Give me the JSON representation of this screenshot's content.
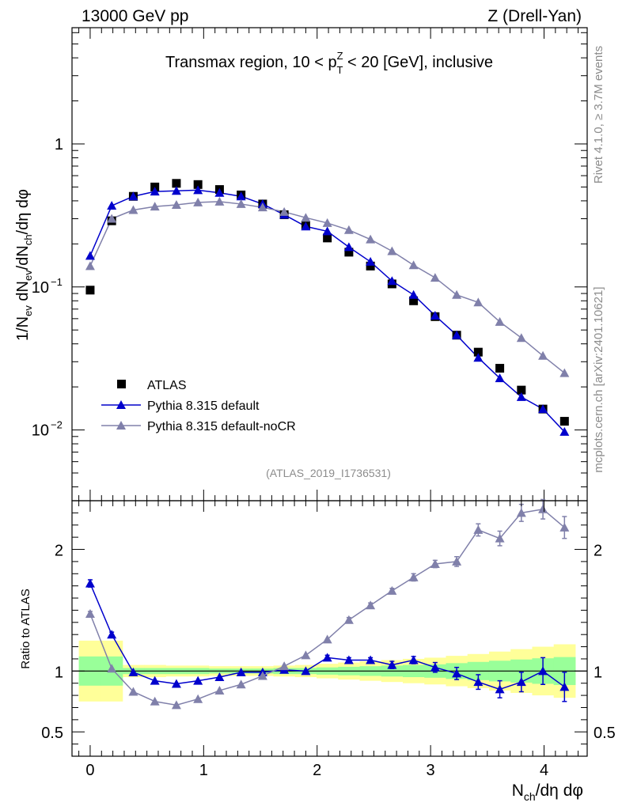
{
  "header": {
    "left": "13000 GeV pp",
    "right": "Z (Drell-Yan)"
  },
  "side_labels": {
    "rivet": "Rivet 4.1.0, ≥ 3.7M events",
    "mcplots": "mcplots.cern.ch [arXiv:2401.10621]"
  },
  "chart_data": [
    {
      "type": "line",
      "panel": "main",
      "title": "Transmax region, 10 < p_T^Z < 20 [GeV], inclusive",
      "ylabel": "1/N_ev dN_ev/dN_ch/dη dφ",
      "yscale": "log",
      "ylim": [
        0.0032,
        6.5
      ],
      "xlim": [
        -0.16,
        4.38
      ],
      "y_ticks": [
        {
          "v": 1,
          "label": "1"
        },
        {
          "v": 0.1,
          "label": "10",
          "exp": "−1"
        },
        {
          "v": 0.01,
          "label": "10",
          "exp": "−2"
        }
      ],
      "watermark": "(ATLAS_2019_I1736531)",
      "legend": {
        "position": "bottom-left",
        "entries": [
          "ATLAS",
          "Pythia 8.315 default",
          "Pythia 8.315 default-noCR"
        ]
      },
      "series": [
        {
          "name": "ATLAS",
          "marker": "square",
          "color": "#000000",
          "x": [
            0.0,
            0.19,
            0.38,
            0.57,
            0.76,
            0.95,
            1.14,
            1.33,
            1.52,
            1.71,
            1.9,
            2.09,
            2.28,
            2.47,
            2.66,
            2.85,
            3.04,
            3.23,
            3.42,
            3.61,
            3.8,
            3.99,
            4.18
          ],
          "y": [
            0.095,
            0.29,
            0.43,
            0.5,
            0.53,
            0.52,
            0.48,
            0.44,
            0.38,
            0.32,
            0.27,
            0.22,
            0.175,
            0.14,
            0.105,
            0.08,
            0.062,
            0.046,
            0.035,
            0.027,
            0.019,
            0.014,
            0.0115
          ]
        },
        {
          "name": "Pythia 8.315 default",
          "marker": "triangle",
          "color": "#0000cc",
          "x": [
            0.0,
            0.19,
            0.38,
            0.57,
            0.76,
            0.95,
            1.14,
            1.33,
            1.52,
            1.71,
            1.9,
            2.09,
            2.28,
            2.47,
            2.66,
            2.85,
            3.04,
            3.23,
            3.42,
            3.61,
            3.8,
            3.99,
            4.18
          ],
          "y": [
            0.165,
            0.37,
            0.43,
            0.465,
            0.47,
            0.475,
            0.455,
            0.43,
            0.38,
            0.32,
            0.265,
            0.245,
            0.19,
            0.15,
            0.11,
            0.088,
            0.063,
            0.046,
            0.032,
            0.023,
            0.017,
            0.014,
            0.0097
          ]
        },
        {
          "name": "Pythia 8.315 default-noCR",
          "marker": "triangle",
          "color": "#8080aa",
          "x": [
            0.0,
            0.19,
            0.38,
            0.57,
            0.76,
            0.95,
            1.14,
            1.33,
            1.52,
            1.71,
            1.9,
            2.09,
            2.28,
            2.47,
            2.66,
            2.85,
            3.04,
            3.23,
            3.42,
            3.61,
            3.8,
            3.99,
            4.18
          ],
          "y": [
            0.14,
            0.3,
            0.345,
            0.365,
            0.375,
            0.39,
            0.395,
            0.38,
            0.36,
            0.335,
            0.305,
            0.28,
            0.25,
            0.215,
            0.178,
            0.142,
            0.116,
            0.088,
            0.078,
            0.057,
            0.044,
            0.033,
            0.025
          ]
        }
      ]
    },
    {
      "type": "line",
      "panel": "ratio",
      "xlabel": "N_ch/dη dφ",
      "ylabel": "Ratio to ATLAS",
      "ylim": [
        0.3,
        2.4
      ],
      "xlim": [
        -0.16,
        4.38
      ],
      "y_ticks": [
        0.5,
        1,
        2
      ],
      "x_ticks": [
        0,
        1,
        2,
        3,
        4
      ],
      "reference": 1.0,
      "bands": {
        "x_edges": [
          -0.1,
          0.095,
          0.285,
          0.475,
          0.665,
          0.855,
          1.045,
          1.235,
          1.425,
          1.615,
          1.805,
          1.995,
          2.185,
          2.375,
          2.565,
          2.755,
          2.945,
          3.135,
          3.325,
          3.515,
          3.705,
          3.895,
          4.085,
          4.275
        ],
        "yellow": [
          [
            0.75,
            1.25
          ],
          [
            0.75,
            1.25
          ],
          [
            0.95,
            1.05
          ],
          [
            0.95,
            1.05
          ],
          [
            0.955,
            1.045
          ],
          [
            0.955,
            1.045
          ],
          [
            0.96,
            1.04
          ],
          [
            0.96,
            1.04
          ],
          [
            0.96,
            1.04
          ],
          [
            0.955,
            1.045
          ],
          [
            0.95,
            1.05
          ],
          [
            0.94,
            1.06
          ],
          [
            0.93,
            1.07
          ],
          [
            0.92,
            1.08
          ],
          [
            0.91,
            1.09
          ],
          [
            0.9,
            1.1
          ],
          [
            0.89,
            1.11
          ],
          [
            0.875,
            1.125
          ],
          [
            0.86,
            1.14
          ],
          [
            0.84,
            1.16
          ],
          [
            0.82,
            1.18
          ],
          [
            0.8,
            1.2
          ],
          [
            0.78,
            1.22
          ]
        ],
        "green": [
          [
            0.88,
            1.12
          ],
          [
            0.88,
            1.12
          ],
          [
            0.975,
            1.025
          ],
          [
            0.975,
            1.025
          ],
          [
            0.975,
            1.025
          ],
          [
            0.975,
            1.025
          ],
          [
            0.98,
            1.02
          ],
          [
            0.98,
            1.02
          ],
          [
            0.98,
            1.02
          ],
          [
            0.975,
            1.025
          ],
          [
            0.975,
            1.025
          ],
          [
            0.97,
            1.03
          ],
          [
            0.965,
            1.035
          ],
          [
            0.96,
            1.04
          ],
          [
            0.955,
            1.045
          ],
          [
            0.95,
            1.05
          ],
          [
            0.945,
            1.055
          ],
          [
            0.935,
            1.065
          ],
          [
            0.925,
            1.075
          ],
          [
            0.915,
            1.085
          ],
          [
            0.905,
            1.095
          ],
          [
            0.895,
            1.105
          ],
          [
            0.885,
            1.115
          ]
        ]
      },
      "series": [
        {
          "name": "Pythia 8.315 default",
          "color": "#0000cc",
          "x": [
            0.0,
            0.19,
            0.38,
            0.57,
            0.76,
            0.95,
            1.14,
            1.33,
            1.52,
            1.71,
            1.9,
            2.09,
            2.28,
            2.47,
            2.66,
            2.85,
            3.04,
            3.23,
            3.42,
            3.61,
            3.8,
            3.99,
            4.18
          ],
          "y": [
            1.72,
            1.3,
            0.99,
            0.92,
            0.895,
            0.92,
            0.95,
            0.99,
            0.99,
            1.01,
            1.0,
            1.11,
            1.09,
            1.09,
            1.05,
            1.09,
            1.03,
            0.98,
            0.91,
            0.85,
            0.91,
            1.0,
            0.87
          ],
          "err": [
            0.03,
            0.02,
            0.01,
            0.01,
            0.01,
            0.01,
            0.01,
            0.01,
            0.01,
            0.01,
            0.01,
            0.02,
            0.02,
            0.02,
            0.03,
            0.03,
            0.04,
            0.05,
            0.06,
            0.07,
            0.08,
            0.11,
            0.12
          ]
        },
        {
          "name": "Pythia 8.315 default-noCR",
          "color": "#8080aa",
          "x": [
            0.0,
            0.19,
            0.38,
            0.57,
            0.76,
            0.95,
            1.14,
            1.33,
            1.52,
            1.71,
            1.9,
            2.09,
            2.28,
            2.47,
            2.66,
            2.85,
            3.04,
            3.23,
            3.42,
            3.61,
            3.8,
            3.99,
            4.18
          ],
          "y": [
            1.47,
            1.02,
            0.83,
            0.75,
            0.72,
            0.77,
            0.84,
            0.89,
            0.96,
            1.04,
            1.13,
            1.26,
            1.42,
            1.54,
            1.66,
            1.77,
            1.88,
            1.9,
            2.16,
            2.09,
            2.3,
            2.33,
            2.18
          ],
          "err": [
            0.02,
            0.01,
            0.01,
            0.01,
            0.01,
            0.01,
            0.01,
            0.01,
            0.01,
            0.01,
            0.01,
            0.01,
            0.02,
            0.02,
            0.02,
            0.03,
            0.03,
            0.04,
            0.05,
            0.06,
            0.07,
            0.08,
            0.09
          ]
        }
      ]
    }
  ]
}
